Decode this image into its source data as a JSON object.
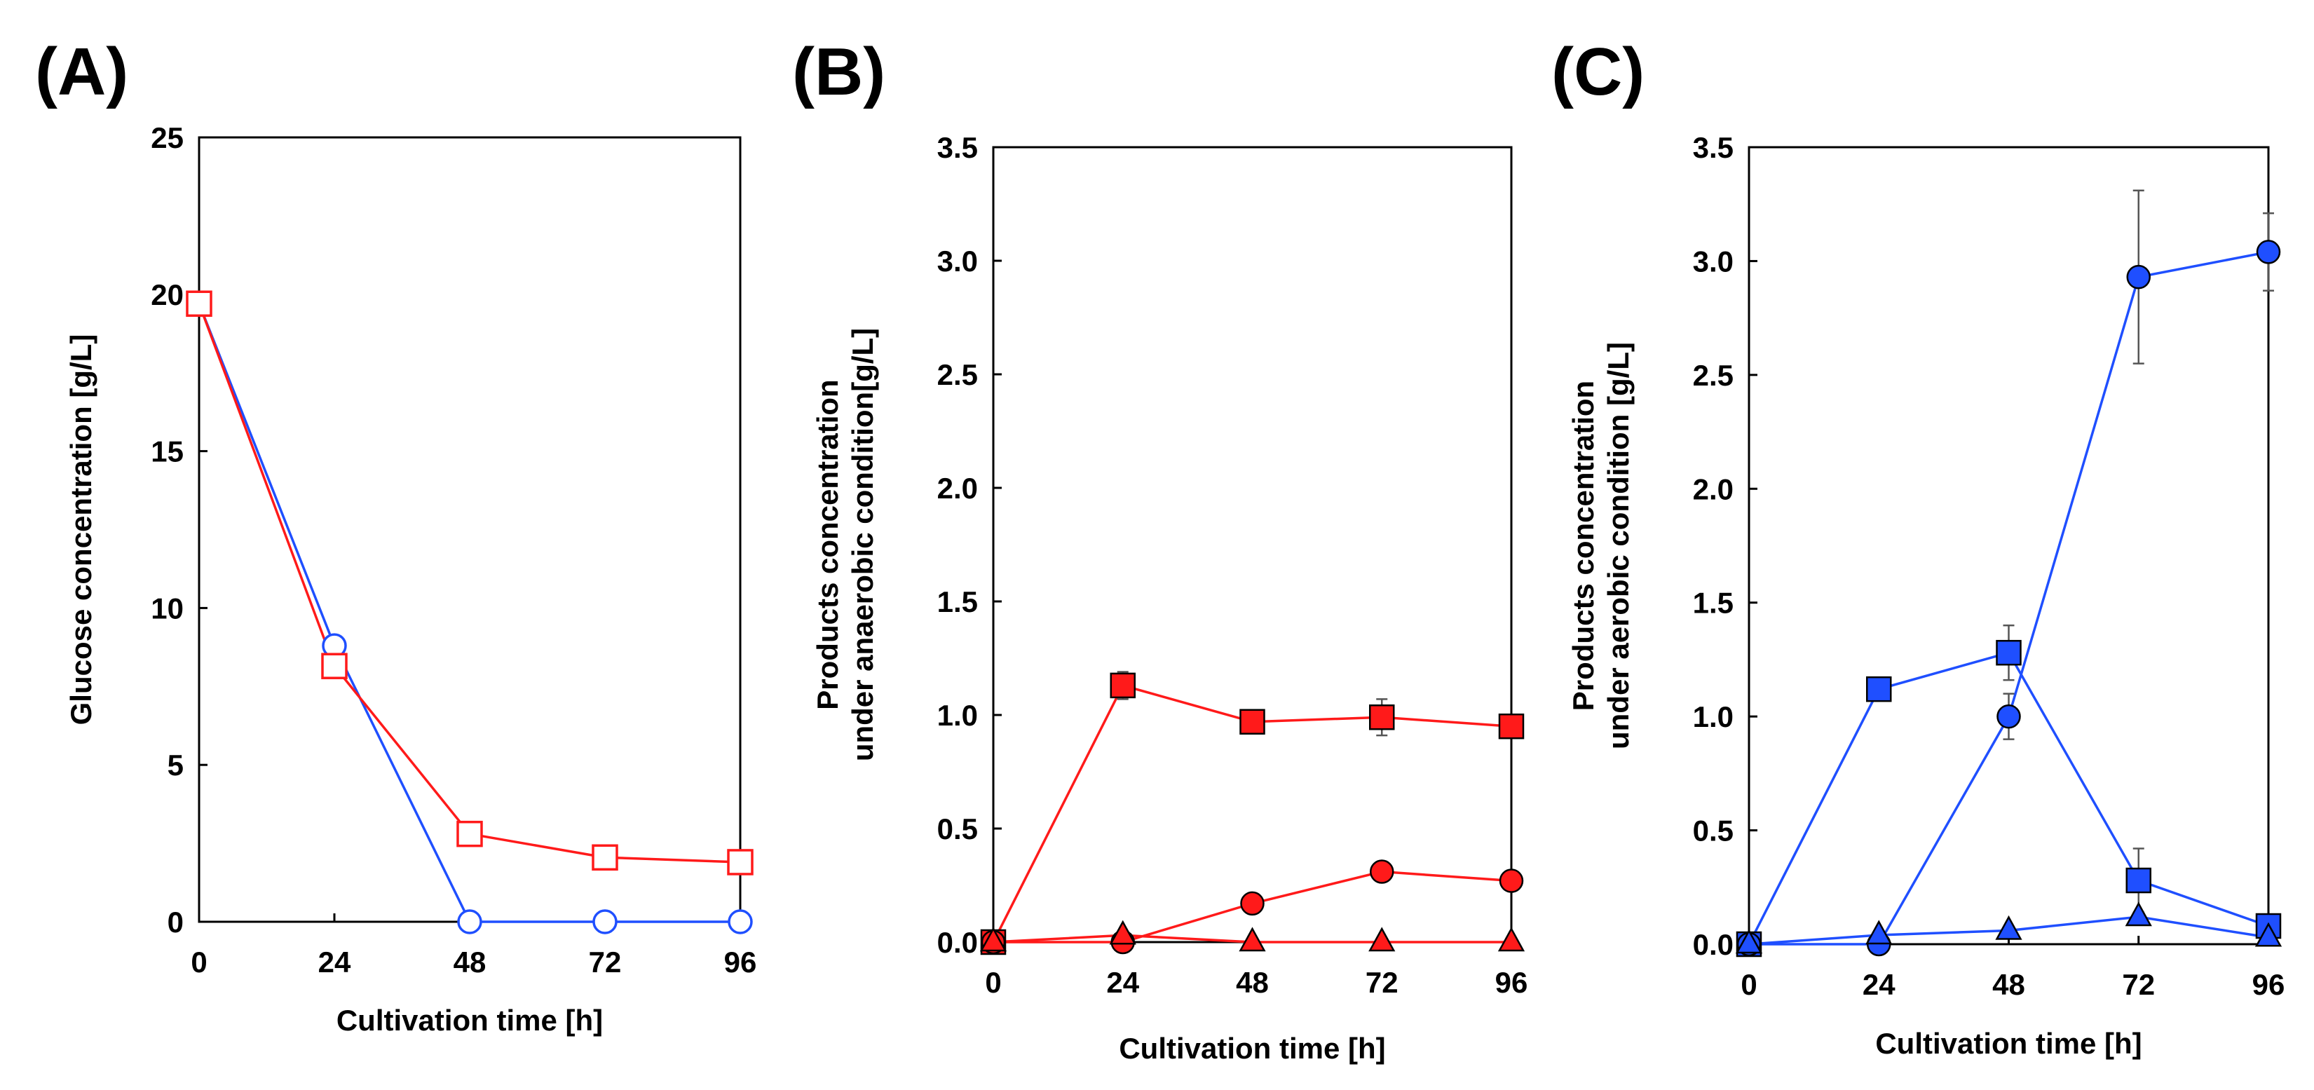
{
  "colors": {
    "red": "#ff0000",
    "blue": "#0033ff",
    "red_line": "#ff1a1a",
    "blue_line": "#1f4fff"
  },
  "chart_data": [
    {
      "panel_label": "(A)",
      "type": "line",
      "xlabel": "Cultivation time [h]",
      "ylabel": "Glucose concentration [g/L]",
      "x_ticks": [
        "0",
        "24",
        "48",
        "72",
        "96"
      ],
      "y_ticks": [
        "0",
        "5",
        "10",
        "15",
        "20",
        "25"
      ],
      "xlim": [
        0,
        96
      ],
      "ylim": [
        0,
        25
      ],
      "x": [
        0,
        24,
        48,
        72,
        96
      ],
      "series": [
        {
          "name": "blue open circle",
          "color": "#1f4fff",
          "marker": "circle",
          "filled": false,
          "values": [
            19.7,
            8.8,
            0,
            0,
            0
          ],
          "errors": [
            0,
            0,
            0,
            0,
            0
          ]
        },
        {
          "name": "red open square",
          "color": "#ff1a1a",
          "marker": "square",
          "filled": false,
          "values": [
            19.7,
            8.15,
            2.8,
            2.05,
            1.9
          ],
          "errors": [
            0,
            0,
            0.3,
            0.35,
            0.35
          ]
        }
      ]
    },
    {
      "panel_label": "(B)",
      "type": "line",
      "xlabel": "Cultivation time [h]",
      "ylabel_lines": [
        "Products concentration",
        "under anaerobic condition[g/L]"
      ],
      "x_ticks": [
        "0",
        "24",
        "48",
        "72",
        "96"
      ],
      "y_ticks": [
        "0.0",
        "0.5",
        "1.0",
        "1.5",
        "2.0",
        "2.5",
        "3.0",
        "3.5"
      ],
      "xlim": [
        0,
        96
      ],
      "ylim": [
        0,
        3.5
      ],
      "x": [
        0,
        24,
        48,
        72,
        96
      ],
      "series": [
        {
          "name": "red filled square",
          "color": "#ff1a1a",
          "marker": "square",
          "filled": true,
          "values": [
            0,
            1.13,
            0.97,
            0.99,
            0.95
          ],
          "errors": [
            0,
            0.06,
            0,
            0.08,
            0
          ]
        },
        {
          "name": "red filled circle",
          "color": "#ff1a1a",
          "marker": "circle",
          "filled": true,
          "values": [
            0,
            0,
            0.17,
            0.31,
            0.27
          ],
          "errors": [
            0,
            0,
            0,
            0,
            0
          ]
        },
        {
          "name": "red filled triangle",
          "color": "#ff1a1a",
          "marker": "triangle",
          "filled": true,
          "values": [
            0,
            0.03,
            0,
            0,
            0
          ],
          "errors": [
            0,
            0,
            0,
            0,
            0
          ]
        }
      ]
    },
    {
      "panel_label": "(C)",
      "type": "line",
      "xlabel": "Cultivation time [h]",
      "ylabel_lines": [
        "Products concentration",
        "under aerobic condition [g/L]"
      ],
      "x_ticks": [
        "0",
        "24",
        "48",
        "72",
        "96"
      ],
      "y_ticks": [
        "0.0",
        "0.5",
        "1.0",
        "1.5",
        "2.0",
        "2.5",
        "3.0",
        "3.5"
      ],
      "xlim": [
        0,
        96
      ],
      "ylim": [
        0,
        3.5
      ],
      "x": [
        0,
        24,
        48,
        72,
        96
      ],
      "series": [
        {
          "name": "blue filled square",
          "color": "#1f4fff",
          "marker": "square",
          "filled": true,
          "values": [
            0,
            1.12,
            1.28,
            0.28,
            0.08
          ],
          "errors": [
            0,
            0.05,
            0.12,
            0.14,
            0
          ]
        },
        {
          "name": "blue filled circle",
          "color": "#1f4fff",
          "marker": "circle",
          "filled": true,
          "values": [
            0,
            0,
            1.0,
            2.93,
            3.04
          ],
          "errors": [
            0,
            0,
            0.1,
            0.38,
            0.17
          ]
        },
        {
          "name": "blue filled triangle",
          "color": "#1f4fff",
          "marker": "triangle",
          "filled": true,
          "values": [
            0,
            0.04,
            0.06,
            0.12,
            0.03
          ],
          "errors": [
            0,
            0,
            0,
            0,
            0
          ]
        }
      ]
    }
  ]
}
